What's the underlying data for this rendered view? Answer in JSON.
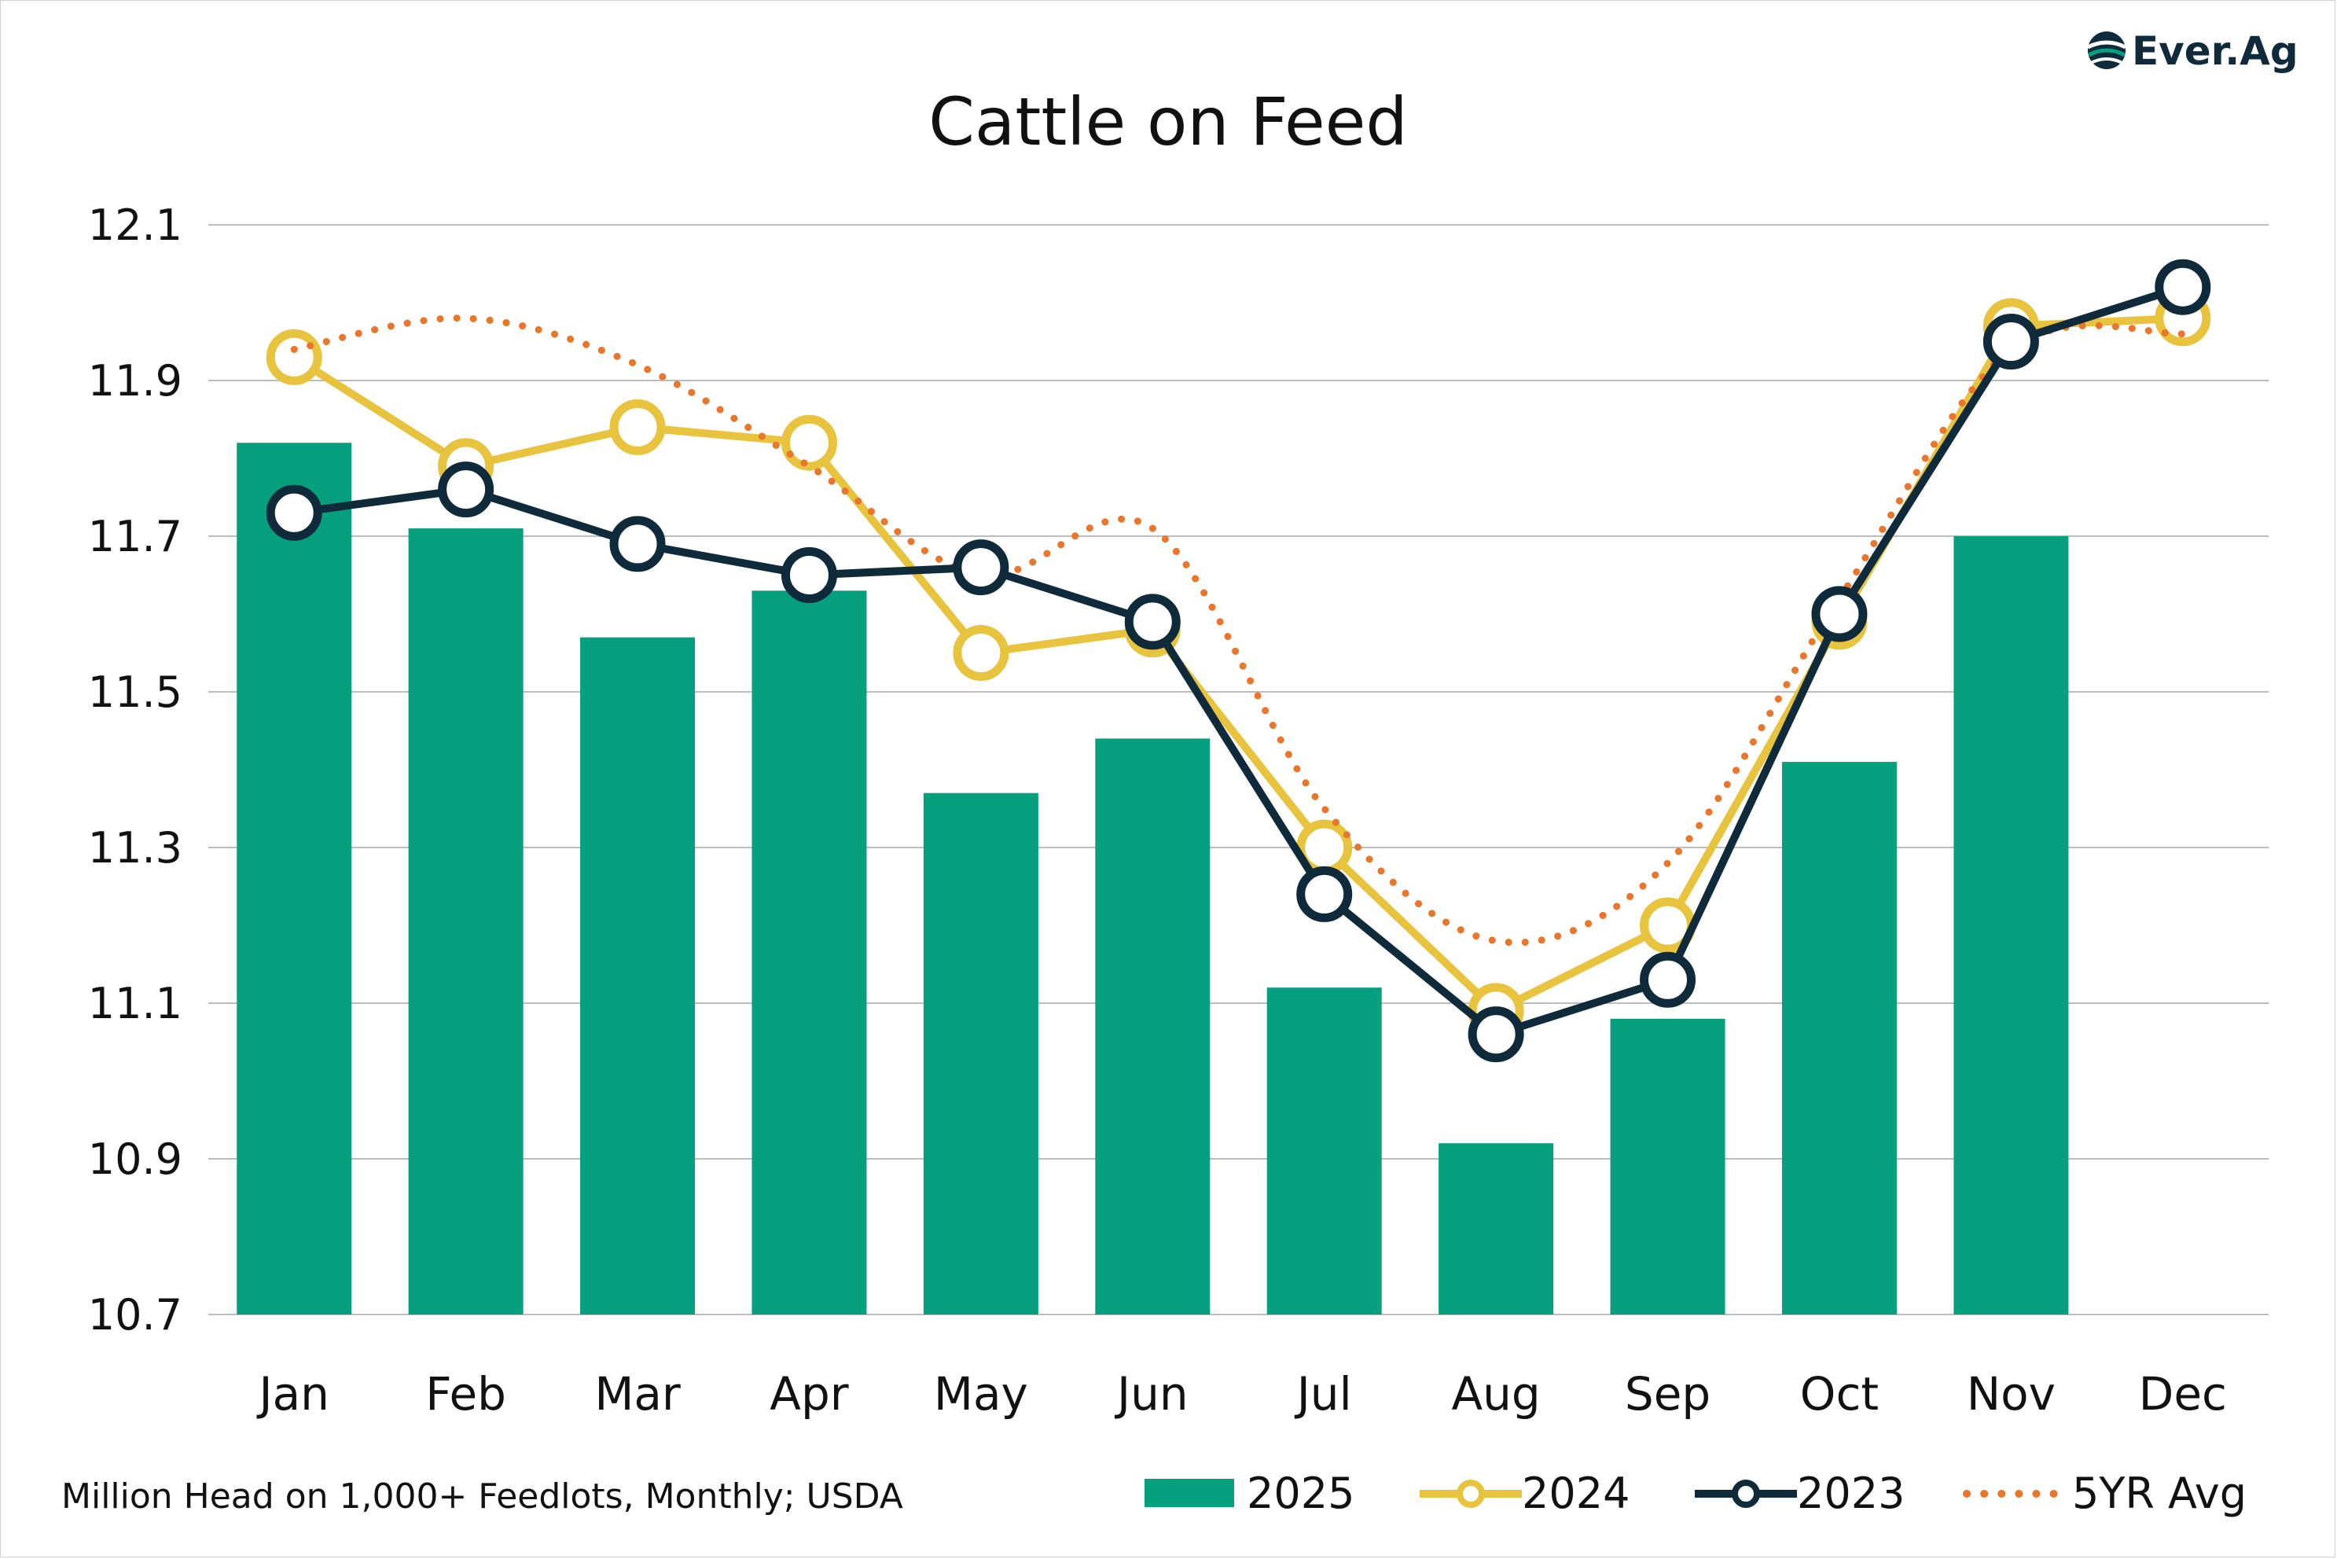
{
  "chart_data": {
    "type": "bar",
    "title": "Cattle on Feed",
    "footnote": "Million Head on 1,000+ Feedlots, Monthly; USDA",
    "categories": [
      "Jan",
      "Feb",
      "Mar",
      "Apr",
      "May",
      "Jun",
      "Jul",
      "Aug",
      "Sep",
      "Oct",
      "Nov",
      "Dec"
    ],
    "ylim": [
      10.7,
      12.1
    ],
    "yticks": [
      "12.1",
      "11.9",
      "11.7",
      "11.5",
      "11.3",
      "11.1",
      "10.9",
      "10.7"
    ],
    "grid": true,
    "legend_position": "bottom-right",
    "series": [
      {
        "name": "2025",
        "kind": "bar",
        "color": "#06a07e",
        "values": [
          11.82,
          11.71,
          11.57,
          11.63,
          11.37,
          11.44,
          11.12,
          10.92,
          11.08,
          11.41,
          11.7,
          null
        ]
      },
      {
        "name": "2024",
        "kind": "line-marker",
        "color": "#e8c33d",
        "values": [
          11.93,
          11.79,
          11.84,
          11.82,
          11.55,
          11.58,
          11.3,
          11.09,
          11.2,
          11.59,
          11.97,
          11.98
        ]
      },
      {
        "name": "2023",
        "kind": "line-marker",
        "color": "#0f2a3a",
        "values": [
          11.73,
          11.76,
          11.69,
          11.65,
          11.66,
          11.59,
          11.24,
          11.06,
          11.13,
          11.6,
          11.95,
          12.02
        ]
      },
      {
        "name": "5YR Avg",
        "kind": "dotted-line",
        "color": "#e9762b",
        "values": [
          11.94,
          11.98,
          11.92,
          11.79,
          11.65,
          11.71,
          11.35,
          11.18,
          11.28,
          11.62,
          11.94,
          11.96
        ]
      }
    ]
  },
  "logo": {
    "text": "Ever.Ag",
    "icon": "globe-icon",
    "color": "#0f2a3a",
    "accent": "#06a07e"
  }
}
